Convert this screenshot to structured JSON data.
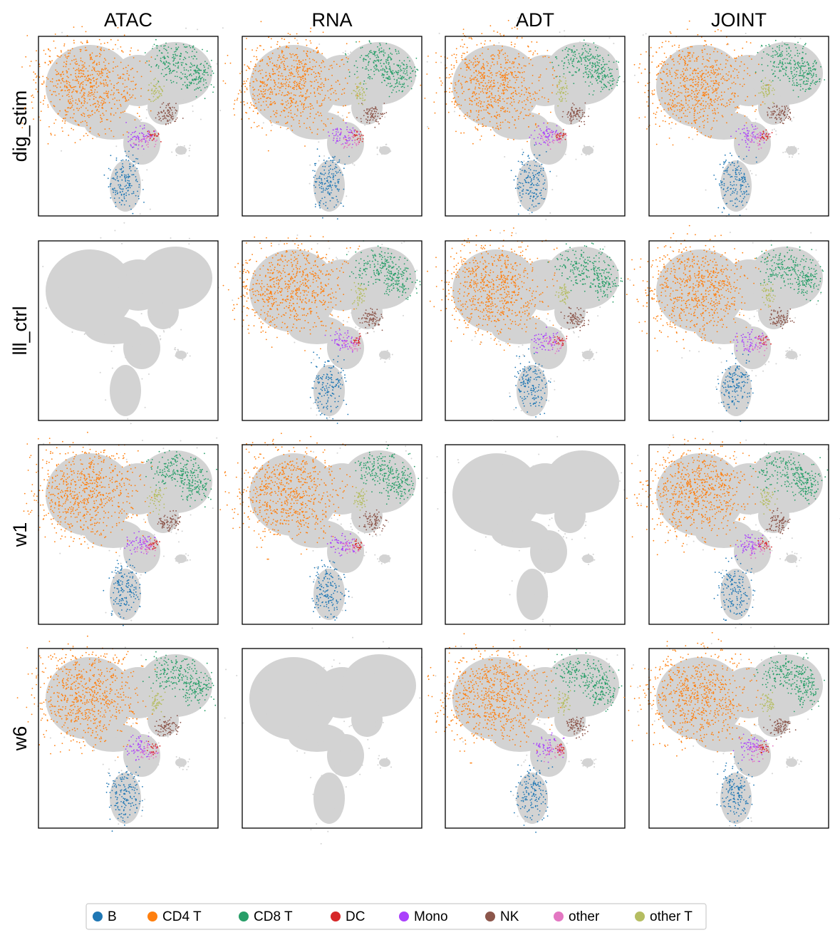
{
  "columns": [
    "ATAC",
    "RNA",
    "ADT",
    "JOINT"
  ],
  "rows": [
    "dig_stim",
    "lll_ctrl",
    "w1",
    "w6"
  ],
  "has_data": [
    [
      true,
      true,
      true,
      true
    ],
    [
      false,
      true,
      true,
      true
    ],
    [
      true,
      true,
      false,
      true
    ],
    [
      true,
      false,
      true,
      true
    ]
  ],
  "legend": [
    {
      "name": "B",
      "color": "#1f77b4"
    },
    {
      "name": "CD4 T",
      "color": "#ff7f0e"
    },
    {
      "name": "CD8 T",
      "color": "#279e68"
    },
    {
      "name": "DC",
      "color": "#d62728"
    },
    {
      "name": "Mono",
      "color": "#aa40fc"
    },
    {
      "name": "NK",
      "color": "#8c564b"
    },
    {
      "name": "other",
      "color": "#e377c2"
    },
    {
      "name": "other T",
      "color": "#b5bd61"
    }
  ]
}
